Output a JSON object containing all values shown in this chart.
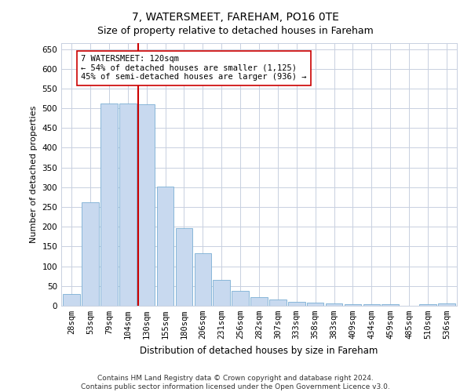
{
  "title1": "7, WATERSMEET, FAREHAM, PO16 0TE",
  "title2": "Size of property relative to detached houses in Fareham",
  "xlabel": "Distribution of detached houses by size in Fareham",
  "ylabel": "Number of detached properties",
  "categories": [
    "28sqm",
    "53sqm",
    "79sqm",
    "104sqm",
    "130sqm",
    "155sqm",
    "180sqm",
    "206sqm",
    "231sqm",
    "256sqm",
    "282sqm",
    "307sqm",
    "333sqm",
    "358sqm",
    "383sqm",
    "409sqm",
    "434sqm",
    "459sqm",
    "485sqm",
    "510sqm",
    "536sqm"
  ],
  "values": [
    30,
    263,
    512,
    512,
    510,
    302,
    196,
    133,
    65,
    38,
    22,
    15,
    10,
    8,
    5,
    4,
    4,
    4,
    0,
    4,
    5
  ],
  "bar_color": "#c8d9ef",
  "bar_edgecolor": "#7aafd4",
  "bar_linewidth": 0.6,
  "vline_color": "#cc0000",
  "vline_linewidth": 1.5,
  "vline_position": 3.57,
  "annotation_text": "7 WATERSMEET: 120sqm\n← 54% of detached houses are smaller (1,125)\n45% of semi-detached houses are larger (936) →",
  "annotation_box_edgecolor": "#cc0000",
  "annotation_box_facecolor": "white",
  "ylim": [
    0,
    665
  ],
  "yticks": [
    0,
    50,
    100,
    150,
    200,
    250,
    300,
    350,
    400,
    450,
    500,
    550,
    600,
    650
  ],
  "grid_color": "#c8d0e0",
  "footer_text": "Contains HM Land Registry data © Crown copyright and database right 2024.\nContains public sector information licensed under the Open Government Licence v3.0.",
  "title1_fontsize": 10,
  "title2_fontsize": 9,
  "xlabel_fontsize": 8.5,
  "ylabel_fontsize": 8,
  "tick_fontsize": 7.5,
  "annotation_fontsize": 7.5,
  "footer_fontsize": 6.5
}
